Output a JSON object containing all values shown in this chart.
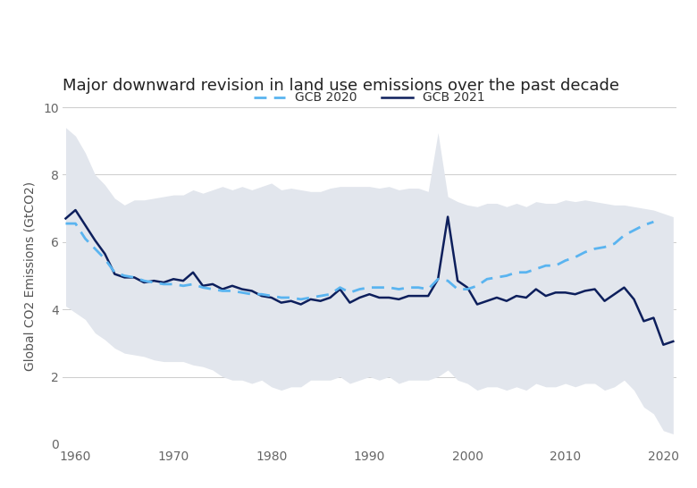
{
  "title": "Major downward revision in land use emissions over the past decade",
  "ylabel": "Global CO2 Emissions (GtCO2)",
  "years_gcb2020": [
    1959,
    1960,
    1961,
    1962,
    1963,
    1964,
    1965,
    1966,
    1967,
    1968,
    1969,
    1970,
    1971,
    1972,
    1973,
    1974,
    1975,
    1976,
    1977,
    1978,
    1979,
    1980,
    1981,
    1982,
    1983,
    1984,
    1985,
    1986,
    1987,
    1988,
    1989,
    1990,
    1991,
    1992,
    1993,
    1994,
    1995,
    1996,
    1997,
    1998,
    1999,
    2000,
    2001,
    2002,
    2003,
    2004,
    2005,
    2006,
    2007,
    2008,
    2009,
    2010,
    2011,
    2012,
    2013,
    2014,
    2015,
    2016,
    2017,
    2018,
    2019
  ],
  "gcb2020_mean": [
    6.55,
    6.55,
    6.1,
    5.8,
    5.5,
    5.1,
    5.0,
    4.95,
    4.85,
    4.8,
    4.75,
    4.75,
    4.7,
    4.75,
    4.65,
    4.6,
    4.55,
    4.55,
    4.5,
    4.45,
    4.45,
    4.4,
    4.35,
    4.35,
    4.3,
    4.35,
    4.4,
    4.45,
    4.65,
    4.5,
    4.6,
    4.65,
    4.65,
    4.65,
    4.6,
    4.65,
    4.65,
    4.6,
    4.9,
    4.85,
    4.6,
    4.6,
    4.7,
    4.9,
    4.95,
    5.0,
    5.1,
    5.1,
    5.2,
    5.3,
    5.3,
    5.45,
    5.55,
    5.7,
    5.8,
    5.85,
    5.95,
    6.2,
    6.35,
    6.5,
    6.6
  ],
  "years_gcb2021": [
    1959,
    1960,
    1961,
    1962,
    1963,
    1964,
    1965,
    1966,
    1967,
    1968,
    1969,
    1970,
    1971,
    1972,
    1973,
    1974,
    1975,
    1976,
    1977,
    1978,
    1979,
    1980,
    1981,
    1982,
    1983,
    1984,
    1985,
    1986,
    1987,
    1988,
    1989,
    1990,
    1991,
    1992,
    1993,
    1994,
    1995,
    1996,
    1997,
    1998,
    1999,
    2000,
    2001,
    2002,
    2003,
    2004,
    2005,
    2006,
    2007,
    2008,
    2009,
    2010,
    2011,
    2012,
    2013,
    2014,
    2015,
    2016,
    2017,
    2018,
    2019,
    2020,
    2021
  ],
  "gcb2021_mean": [
    6.7,
    6.95,
    6.5,
    6.05,
    5.65,
    5.05,
    4.95,
    4.95,
    4.8,
    4.85,
    4.8,
    4.9,
    4.85,
    5.1,
    4.7,
    4.75,
    4.6,
    4.7,
    4.6,
    4.55,
    4.4,
    4.35,
    4.2,
    4.25,
    4.15,
    4.3,
    4.25,
    4.35,
    4.6,
    4.2,
    4.35,
    4.45,
    4.35,
    4.35,
    4.3,
    4.4,
    4.4,
    4.4,
    4.9,
    6.75,
    4.85,
    4.65,
    4.15,
    4.25,
    4.35,
    4.25,
    4.4,
    4.35,
    4.6,
    4.4,
    4.5,
    4.5,
    4.45,
    4.55,
    4.6,
    4.25,
    4.45,
    4.65,
    4.3,
    3.65,
    3.75,
    2.95,
    3.05
  ],
  "years_band": [
    1959,
    1960,
    1961,
    1962,
    1963,
    1964,
    1965,
    1966,
    1967,
    1968,
    1969,
    1970,
    1971,
    1972,
    1973,
    1974,
    1975,
    1976,
    1977,
    1978,
    1979,
    1980,
    1981,
    1982,
    1983,
    1984,
    1985,
    1986,
    1987,
    1988,
    1989,
    1990,
    1991,
    1992,
    1993,
    1994,
    1995,
    1996,
    1997,
    1998,
    1999,
    2000,
    2001,
    2002,
    2003,
    2004,
    2005,
    2006,
    2007,
    2008,
    2009,
    2010,
    2011,
    2012,
    2013,
    2014,
    2015,
    2016,
    2017,
    2018,
    2019,
    2020,
    2021
  ],
  "band_upper": [
    9.4,
    9.15,
    8.65,
    8.0,
    7.7,
    7.3,
    7.1,
    7.25,
    7.25,
    7.3,
    7.35,
    7.4,
    7.4,
    7.55,
    7.45,
    7.55,
    7.65,
    7.55,
    7.65,
    7.55,
    7.65,
    7.75,
    7.55,
    7.6,
    7.55,
    7.5,
    7.5,
    7.6,
    7.65,
    7.65,
    7.65,
    7.65,
    7.6,
    7.65,
    7.55,
    7.6,
    7.6,
    7.5,
    9.25,
    7.35,
    7.2,
    7.1,
    7.05,
    7.15,
    7.15,
    7.05,
    7.15,
    7.05,
    7.2,
    7.15,
    7.15,
    7.25,
    7.2,
    7.25,
    7.2,
    7.15,
    7.1,
    7.1,
    7.05,
    7.0,
    6.95,
    6.85,
    6.75
  ],
  "band_lower": [
    4.1,
    3.9,
    3.7,
    3.3,
    3.1,
    2.85,
    2.7,
    2.65,
    2.6,
    2.5,
    2.45,
    2.45,
    2.45,
    2.35,
    2.3,
    2.2,
    2.0,
    1.9,
    1.9,
    1.8,
    1.9,
    1.7,
    1.6,
    1.7,
    1.7,
    1.9,
    1.9,
    1.9,
    2.0,
    1.8,
    1.9,
    2.0,
    1.9,
    2.0,
    1.8,
    1.9,
    1.9,
    1.9,
    2.0,
    2.2,
    1.9,
    1.8,
    1.6,
    1.7,
    1.7,
    1.6,
    1.7,
    1.6,
    1.8,
    1.7,
    1.7,
    1.8,
    1.7,
    1.8,
    1.8,
    1.6,
    1.7,
    1.9,
    1.6,
    1.1,
    0.9,
    0.4,
    0.3
  ],
  "gcb2020_color": "#5ab4f0",
  "gcb2021_color": "#0d1f5c",
  "band_color": "#e2e6ed",
  "background_color": "#ffffff",
  "grid_color": "#cccccc",
  "ylim": [
    0,
    10
  ],
  "xlim": [
    1959,
    2021
  ],
  "yticks": [
    0,
    2,
    4,
    6,
    8,
    10
  ],
  "xticks": [
    1960,
    1970,
    1980,
    1990,
    2000,
    2010,
    2020
  ],
  "legend_gcb2020": "GCB 2020",
  "legend_gcb2021": "GCB 2021",
  "title_fontsize": 13,
  "label_fontsize": 10,
  "tick_fontsize": 10
}
